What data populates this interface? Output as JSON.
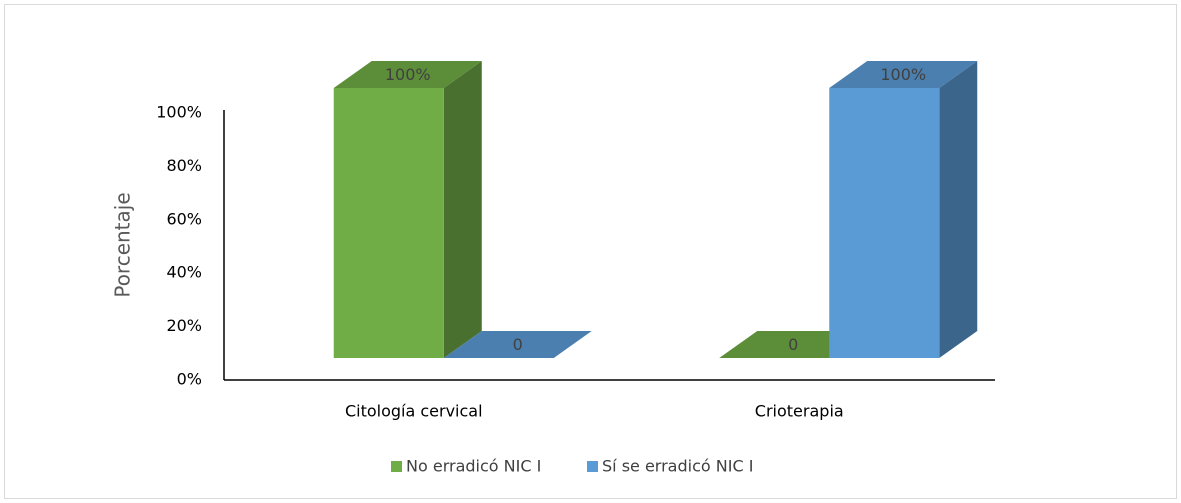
{
  "chart_data": {
    "type": "bar3d",
    "y_label": "Porcentaje",
    "categories": [
      "Citología cervical",
      "Crioterapia"
    ],
    "series": [
      {
        "name": "No erradicó NIC I",
        "color": "#70ad47",
        "values": [
          100,
          0
        ],
        "value_labels": [
          "100%",
          "0"
        ]
      },
      {
        "name": "Sí se erradicó NIC I",
        "color": "#5b9bd5",
        "values": [
          0,
          100
        ],
        "value_labels": [
          "0",
          "100%"
        ]
      }
    ],
    "ylim": [
      0,
      100
    ],
    "yticks": [
      {
        "value": 0,
        "label": "0%"
      },
      {
        "value": 20,
        "label": "20%"
      },
      {
        "value": 40,
        "label": "40%"
      },
      {
        "value": 60,
        "label": "60%"
      },
      {
        "value": 80,
        "label": "80%"
      },
      {
        "value": 100,
        "label": "100%"
      }
    ],
    "legend": "bottom",
    "grid": false
  }
}
